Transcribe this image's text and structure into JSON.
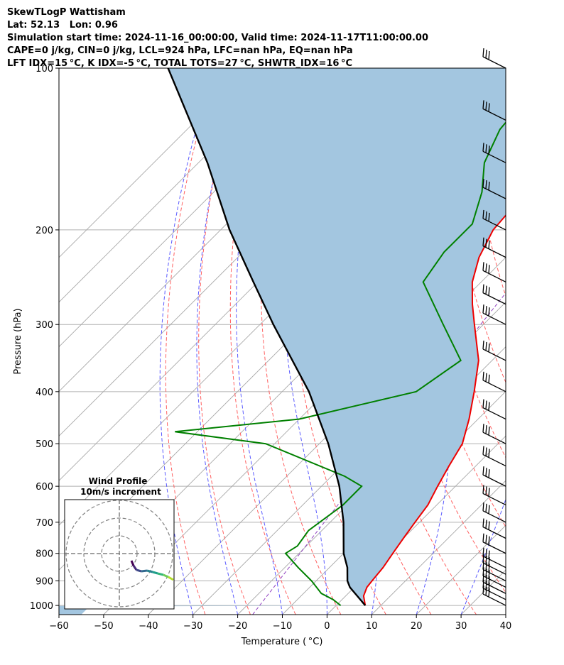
{
  "header": {
    "line1": "SkewTLogP Wattisham",
    "line2": "Lat: 52.13   Lon: 0.96",
    "line3": "Simulation start time: 2024-11-16_00:00:00, Valid time: 2024-11-17T11:00:00.00",
    "line4": "CAPE=0 j/kg, CIN=0 j/kg, LCL=924 hPa, LFC=nan hPa, EQ=nan hPa",
    "line5": "LFT IDX=15 °C, K IDX=-5 °C, TOTAL TOTS=27 °C, SHWTR_IDX=16 °C"
  },
  "chart_data": {
    "type": "line",
    "subtype": "skew-t log-p",
    "xlabel": "Temperature ( °C)",
    "ylabel": "Pressure (hPa)",
    "xlim": [
      -60,
      40
    ],
    "ylim": [
      1040,
      100
    ],
    "x_ticks": [
      -60,
      -50,
      -40,
      -30,
      -20,
      -10,
      0,
      10,
      20,
      30,
      40
    ],
    "x_tick_labels": [
      "−60",
      "−50",
      "−40",
      "−30",
      "−20",
      "−10",
      "0",
      "10",
      "20",
      "30",
      "40"
    ],
    "y_ticks": [
      1000,
      900,
      800,
      700,
      600,
      500,
      400,
      300,
      200,
      100
    ],
    "y_tick_labels": [
      "1000",
      "900",
      "800",
      "700",
      "600",
      "500",
      "400",
      "300",
      "200",
      "100"
    ],
    "series": [
      {
        "kind": "temperature",
        "color": "#ee0000",
        "points": [
          [
            1000,
            6.5
          ],
          [
            960,
            4
          ],
          [
            925,
            2.8
          ],
          [
            900,
            2.5
          ],
          [
            850,
            2
          ],
          [
            800,
            1
          ],
          [
            750,
            0
          ],
          [
            700,
            -1
          ],
          [
            650,
            -2
          ],
          [
            600,
            -4
          ],
          [
            550,
            -6
          ],
          [
            500,
            -8
          ],
          [
            450,
            -12
          ],
          [
            400,
            -17
          ],
          [
            350,
            -23
          ],
          [
            300,
            -32
          ],
          [
            275,
            -37
          ],
          [
            250,
            -42
          ],
          [
            225,
            -46
          ],
          [
            200,
            -49
          ],
          [
            150,
            -51
          ],
          [
            125,
            -53
          ],
          [
            100,
            -55
          ]
        ]
      },
      {
        "kind": "dewpoint",
        "color": "#008000",
        "points": [
          [
            1000,
            1
          ],
          [
            975,
            -2
          ],
          [
            950,
            -6
          ],
          [
            900,
            -11
          ],
          [
            850,
            -17
          ],
          [
            800,
            -23
          ],
          [
            775,
            -22
          ],
          [
            725,
            -23
          ],
          [
            650,
            -21
          ],
          [
            600,
            -21
          ],
          [
            575,
            -27
          ],
          [
            500,
            -52
          ],
          [
            475,
            -75
          ],
          [
            450,
            -50
          ],
          [
            400,
            -30
          ],
          [
            350,
            -27
          ],
          [
            300,
            -39
          ],
          [
            250,
            -53
          ],
          [
            220,
            -55
          ],
          [
            195,
            -55
          ],
          [
            170,
            -60
          ],
          [
            150,
            -66
          ],
          [
            130,
            -70
          ],
          [
            115,
            -71
          ],
          [
            100,
            -73
          ]
        ]
      },
      {
        "kind": "parcel",
        "color": "#000000",
        "points": [
          [
            1000,
            6.5
          ],
          [
            925,
            -1
          ],
          [
            900,
            -3
          ],
          [
            850,
            -6
          ],
          [
            800,
            -10
          ],
          [
            700,
            -17
          ],
          [
            600,
            -26
          ],
          [
            500,
            -38
          ],
          [
            400,
            -54
          ],
          [
            300,
            -77
          ],
          [
            250,
            -91
          ],
          [
            200,
            -108
          ],
          [
            150,
            -128
          ],
          [
            100,
            -158
          ]
        ]
      }
    ],
    "shading": "area between temperature and parcel",
    "wind_barbs": [
      {
        "pressure": 1000,
        "u": 0,
        "v": 0
      }
    ],
    "wind_barbs_pressures": [
      1000,
      975,
      950,
      925,
      900,
      875,
      850,
      800,
      750,
      700,
      650,
      600,
      550,
      500,
      450,
      400,
      350,
      300,
      275,
      250,
      225,
      200,
      175,
      150,
      125,
      100
    ],
    "hodograph": {
      "title": "Wind Profile",
      "subtitle": "10m/s increment",
      "rings": 3,
      "colormap": "viridis"
    }
  }
}
